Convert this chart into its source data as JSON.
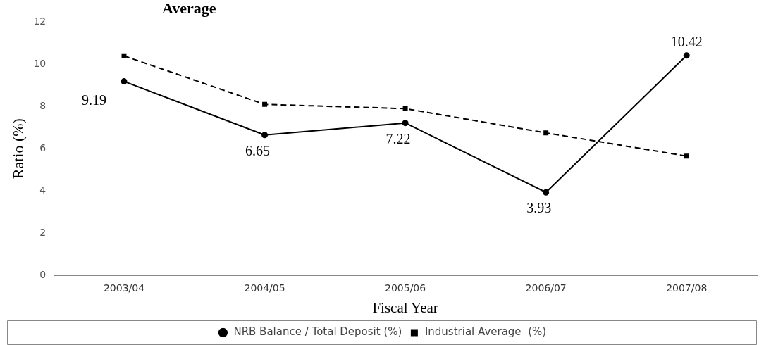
{
  "chart_data": {
    "type": "line",
    "title": "Average",
    "xlabel": "Fiscal Year",
    "ylabel": "Ratio (%)",
    "categories": [
      "2003/04",
      "2004/05",
      "2005/06",
      "2006/07",
      "2007/08"
    ],
    "series": [
      {
        "name": "NRB Balance / Total Deposit (%)",
        "color": "#000000",
        "values": [
          9.19,
          6.65,
          7.22,
          3.93,
          10.42
        ],
        "value_labels": [
          "9.19",
          "6.65",
          "7.22",
          "3.93",
          "10.42"
        ],
        "marker": "circle",
        "line_style": "solid"
      },
      {
        "name": "Industrial Average  (%)",
        "color": "#000000",
        "values": [
          10.4,
          8.1,
          7.9,
          6.75,
          5.65
        ],
        "marker": "square",
        "line_style": "dashed"
      }
    ],
    "ylim": [
      0,
      12
    ],
    "yticks": [
      0,
      2,
      4,
      6,
      8,
      10,
      12
    ],
    "grid": false,
    "legend": "bottom"
  }
}
